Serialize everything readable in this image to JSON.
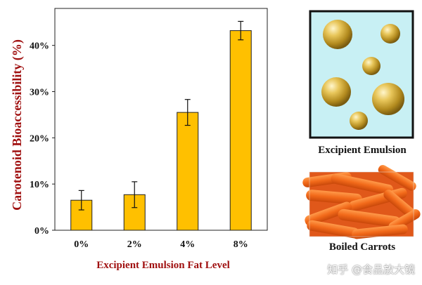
{
  "chart_data": {
    "type": "bar",
    "categories": [
      "0%",
      "2%",
      "4%",
      "8%"
    ],
    "values": [
      6.5,
      7.7,
      25.5,
      43.2
    ],
    "errors": [
      2.1,
      2.8,
      2.8,
      2.0
    ],
    "ylabel": "Carotenoid Bioaccessibility (%)",
    "xlabel": "Excipient Emulsion Fat Level",
    "ylim": [
      0,
      48
    ],
    "yticks": [
      "0%",
      "10%",
      "20%",
      "30%",
      "40%"
    ],
    "ytick_values": [
      0,
      10,
      20,
      30,
      40
    ],
    "bar_color": "#FFC000",
    "axis_title_color": "#A01010"
  },
  "panels": {
    "emulsion_caption": "Excipient Emulsion",
    "carrots_caption": "Boiled Carrots",
    "emulsion_background": "#C8F0F4"
  },
  "watermark": "知乎 @食品放大镜"
}
